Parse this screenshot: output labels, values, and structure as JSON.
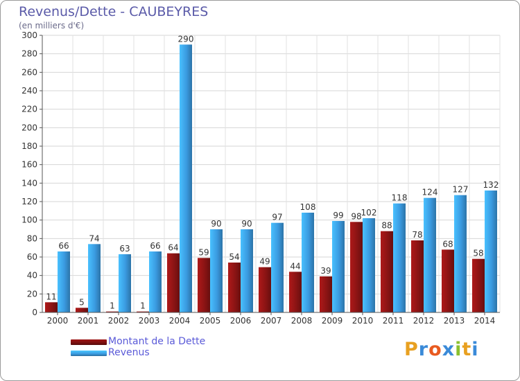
{
  "chart_data": {
    "type": "bar",
    "title": "Revenus/Dette - CAUBEYRES",
    "subtitle": "(en milliers d'€)",
    "xlabel": "",
    "ylabel": "",
    "ylim": [
      0,
      300
    ],
    "yticks": [
      0,
      20,
      40,
      60,
      80,
      100,
      120,
      140,
      160,
      180,
      200,
      220,
      240,
      260,
      280,
      300
    ],
    "grid": true,
    "legend_position": "bottom-left",
    "categories": [
      "2000",
      "2001",
      "2002",
      "2003",
      "2004",
      "2005",
      "2006",
      "2007",
      "2008",
      "2009",
      "2010",
      "2011",
      "2012",
      "2013",
      "2014"
    ],
    "series": [
      {
        "name": "Montant de la Dette",
        "color": "#8b1414",
        "values": [
          11,
          5,
          1,
          1,
          64,
          59,
          54,
          49,
          44,
          39,
          98,
          88,
          78,
          68,
          58
        ]
      },
      {
        "name": "Revenus",
        "color": "#3a9ae0",
        "values": [
          66,
          74,
          63,
          66,
          290,
          90,
          90,
          97,
          108,
          99,
          102,
          118,
          124,
          127,
          132
        ]
      }
    ]
  },
  "legend": {
    "items": [
      {
        "label": "Montant de la Dette",
        "color": "#7a0f0f"
      },
      {
        "label": "Revenus",
        "color": "#3a9ae0"
      }
    ]
  },
  "logo": {
    "letters": [
      "P",
      "r",
      "o",
      "x",
      "i",
      "t",
      "i"
    ],
    "colors": [
      "#e8a020",
      "#3a8ad8",
      "#e85a20",
      "#3a8ad8",
      "#8ac030",
      "#e8a020",
      "#3a8ad8"
    ]
  }
}
